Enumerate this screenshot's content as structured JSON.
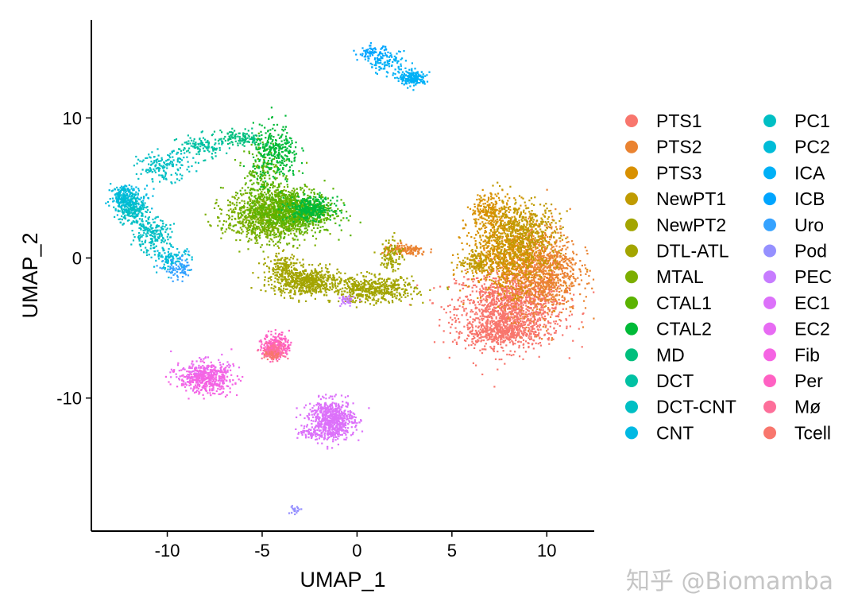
{
  "chart_data": {
    "type": "scatter",
    "title": "",
    "xlabel": "UMAP_1",
    "ylabel": "UMAP_2",
    "xlim": [
      -14,
      12.5
    ],
    "ylim": [
      -19.5,
      17
    ],
    "xticks": [
      -10,
      -5,
      0,
      5,
      10
    ],
    "yticks": [
      -10,
      0,
      10
    ],
    "grid": false,
    "legend_position": "right",
    "legend_columns": 2,
    "series": [
      {
        "name": "PTS1",
        "color": "#F8766D",
        "clusters": [
          {
            "x": 8.0,
            "y": -3.5,
            "sx": 1.4,
            "sy": 1.4,
            "n": 1300
          },
          {
            "x": 7.5,
            "y": -5.2,
            "sx": 0.9,
            "sy": 0.5,
            "n": 400
          }
        ]
      },
      {
        "name": "PTS2",
        "color": "#EA8331",
        "clusters": [
          {
            "x": 9.6,
            "y": -0.8,
            "sx": 1.0,
            "sy": 1.6,
            "n": 1100
          },
          {
            "x": 2.5,
            "y": 0.6,
            "sx": 0.6,
            "sy": 0.2,
            "n": 140
          }
        ]
      },
      {
        "name": "PTS3",
        "color": "#D89000",
        "clusters": [
          {
            "x": 7.8,
            "y": 0.5,
            "sx": 1.0,
            "sy": 1.4,
            "n": 800
          },
          {
            "x": 7.0,
            "y": 3.5,
            "sx": 0.5,
            "sy": 0.6,
            "n": 200
          }
        ]
      },
      {
        "name": "NewPT1",
        "color": "#C09B00",
        "clusters": [
          {
            "x": 8.6,
            "y": 1.8,
            "sx": 1.0,
            "sy": 1.2,
            "n": 500
          },
          {
            "x": 6.3,
            "y": -0.3,
            "sx": 0.5,
            "sy": 0.4,
            "n": 120
          }
        ]
      },
      {
        "name": "NewPT2",
        "color": "#A3A500",
        "clusters": [
          {
            "x": 0.8,
            "y": -2.2,
            "sx": 1.1,
            "sy": 0.45,
            "n": 500
          },
          {
            "x": 1.8,
            "y": 0.3,
            "sx": 0.3,
            "sy": 0.6,
            "n": 100
          }
        ]
      },
      {
        "name": "DTL-ATL",
        "color": "#A3A500",
        "clusters": [
          {
            "x": -2.8,
            "y": -1.6,
            "sx": 0.9,
            "sy": 0.5,
            "n": 600
          },
          {
            "x": -4.0,
            "y": -0.5,
            "sx": 0.4,
            "sy": 0.5,
            "n": 120
          }
        ]
      },
      {
        "name": "MTAL",
        "color": "#7CAE00",
        "clusters": [
          {
            "x": -4.8,
            "y": 3.0,
            "sx": 1.1,
            "sy": 0.9,
            "n": 900
          }
        ]
      },
      {
        "name": "CTAL1",
        "color": "#5BB300",
        "clusters": [
          {
            "x": -3.5,
            "y": 3.4,
            "sx": 1.1,
            "sy": 0.8,
            "n": 900
          },
          {
            "x": -5.0,
            "y": 6.0,
            "sx": 0.5,
            "sy": 1.2,
            "n": 200
          }
        ]
      },
      {
        "name": "CTAL2",
        "color": "#00BA38",
        "clusters": [
          {
            "x": -4.3,
            "y": 7.5,
            "sx": 0.6,
            "sy": 1.0,
            "n": 300
          },
          {
            "x": -2.5,
            "y": 3.6,
            "sx": 0.6,
            "sy": 0.4,
            "n": 300
          }
        ]
      },
      {
        "name": "MD",
        "color": "#00BF7D",
        "clusters": [
          {
            "x": -6.2,
            "y": 8.6,
            "sx": 0.6,
            "sy": 0.3,
            "n": 120
          }
        ]
      },
      {
        "name": "DCT",
        "color": "#00C1A3",
        "clusters": [
          {
            "x": -8.3,
            "y": 8.0,
            "sx": 0.6,
            "sy": 0.4,
            "n": 120
          }
        ]
      },
      {
        "name": "DCT-CNT",
        "color": "#00BFC4",
        "clusters": [
          {
            "x": -10.2,
            "y": 6.6,
            "sx": 0.7,
            "sy": 0.5,
            "n": 160
          }
        ]
      },
      {
        "name": "CNT",
        "color": "#00B9E3",
        "clusters": [
          {
            "x": -12.0,
            "y": 4.3,
            "sx": 0.5,
            "sy": 0.5,
            "n": 150
          }
        ]
      },
      {
        "name": "PC1",
        "color": "#00BFC4",
        "clusters": [
          {
            "x": -11.9,
            "y": 3.5,
            "sx": 0.4,
            "sy": 0.6,
            "n": 200
          },
          {
            "x": -10.9,
            "y": 1.7,
            "sx": 0.5,
            "sy": 0.6,
            "n": 200
          }
        ]
      },
      {
        "name": "PC2",
        "color": "#00BCD8",
        "clusters": [
          {
            "x": -9.8,
            "y": 0.0,
            "sx": 0.5,
            "sy": 0.4,
            "n": 100
          },
          {
            "x": -12.4,
            "y": 4.5,
            "sx": 0.3,
            "sy": 0.4,
            "n": 100
          }
        ]
      },
      {
        "name": "ICA",
        "color": "#00B0F6",
        "clusters": [
          {
            "x": 2.9,
            "y": 12.9,
            "sx": 0.35,
            "sy": 0.25,
            "n": 200
          },
          {
            "x": 1.5,
            "y": 14.0,
            "sx": 0.5,
            "sy": 0.4,
            "n": 100
          }
        ]
      },
      {
        "name": "ICB",
        "color": "#00A5FF",
        "clusters": [
          {
            "x": 0.8,
            "y": 14.7,
            "sx": 0.4,
            "sy": 0.25,
            "n": 80
          }
        ]
      },
      {
        "name": "Uro",
        "color": "#35A2FF",
        "clusters": [
          {
            "x": -9.4,
            "y": -0.8,
            "sx": 0.4,
            "sy": 0.4,
            "n": 80
          }
        ]
      },
      {
        "name": "Pod",
        "color": "#9590FF",
        "clusters": [
          {
            "x": -3.3,
            "y": -17.9,
            "sx": 0.15,
            "sy": 0.15,
            "n": 20
          }
        ]
      },
      {
        "name": "PEC",
        "color": "#C77CFF",
        "clusters": [
          {
            "x": -0.6,
            "y": -3.0,
            "sx": 0.2,
            "sy": 0.2,
            "n": 40
          }
        ]
      },
      {
        "name": "EC1",
        "color": "#DC71FA",
        "clusters": [
          {
            "x": -1.4,
            "y": -11.5,
            "sx": 0.6,
            "sy": 0.7,
            "n": 700
          },
          {
            "x": -2.5,
            "y": -12.5,
            "sx": 0.3,
            "sy": 0.2,
            "n": 40
          }
        ]
      },
      {
        "name": "EC2",
        "color": "#E76BF3",
        "clusters": [
          {
            "x": -8.2,
            "y": -8.2,
            "sx": 0.7,
            "sy": 0.5,
            "n": 200
          }
        ]
      },
      {
        "name": "Fib",
        "color": "#F564E3",
        "clusters": [
          {
            "x": -8.0,
            "y": -8.6,
            "sx": 0.7,
            "sy": 0.5,
            "n": 350
          }
        ]
      },
      {
        "name": "Per",
        "color": "#FF61C3",
        "clusters": [
          {
            "x": -4.3,
            "y": -6.2,
            "sx": 0.35,
            "sy": 0.45,
            "n": 250
          }
        ]
      },
      {
        "name": "Mø",
        "color": "#FD6F9A",
        "clusters": [
          {
            "x": -4.4,
            "y": -6.6,
            "sx": 0.3,
            "sy": 0.3,
            "n": 120
          }
        ]
      },
      {
        "name": "Tcell",
        "color": "#F8766D",
        "clusters": [
          {
            "x": -4.5,
            "y": -6.9,
            "sx": 0.2,
            "sy": 0.15,
            "n": 40
          }
        ]
      }
    ]
  },
  "watermark": "知乎 @Biomamba"
}
